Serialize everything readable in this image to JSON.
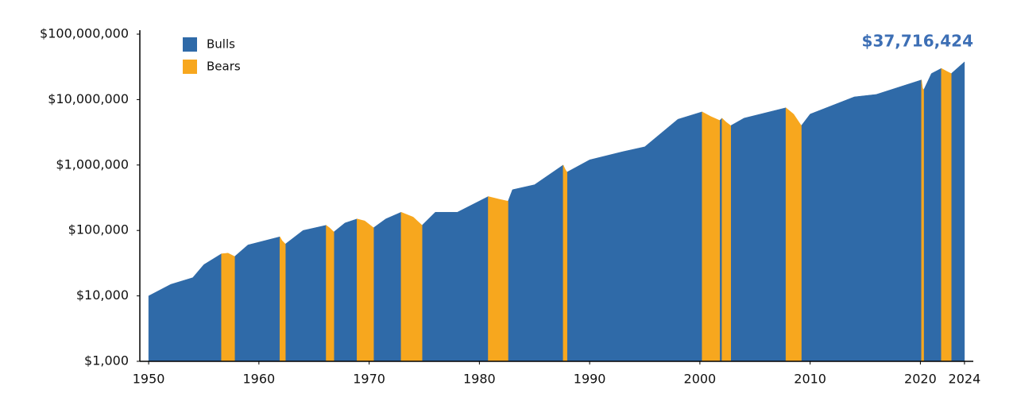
{
  "chart_data": {
    "type": "area",
    "log_scale": true,
    "legend": "upper left",
    "annotation": "$37,716,424",
    "x": [
      1950,
      1952,
      1954,
      1955,
      1956.6,
      1957.2,
      1957.8,
      1959,
      1961.9,
      1962.1,
      1962.4,
      1964,
      1966.1,
      1966.4,
      1966.8,
      1967.8,
      1968.9,
      1969.6,
      1970.4,
      1971.5,
      1972.9,
      1974,
      1974.8,
      1976,
      1978,
      1980.8,
      1981.8,
      1982.6,
      1983,
      1985,
      1987.6,
      1987.8,
      1987.95,
      1990,
      1993,
      1995,
      1998,
      2000.2,
      2001,
      2001.8,
      2001.9,
      2002,
      2002.4,
      2002.8,
      2004,
      2007.8,
      2008.5,
      2009.2,
      2010,
      2014,
      2016,
      2020.1,
      2020.2,
      2020.3,
      2021,
      2021.9,
      2022.4,
      2022.8,
      2024
    ],
    "series": [
      {
        "name": "Bulls",
        "color": "#2f6aa8",
        "values": [
          10000,
          15000,
          19000,
          30000,
          44000,
          null,
          40000,
          60000,
          80000,
          null,
          62000,
          100000,
          120000,
          null,
          95000,
          130000,
          150000,
          null,
          110000,
          150000,
          190000,
          null,
          120000,
          190000,
          190000,
          330000,
          null,
          280000,
          420000,
          500000,
          1000000,
          null,
          780000,
          1200000,
          1600000,
          1900000,
          5000000,
          6500000,
          null,
          4800000,
          5000000,
          5200000,
          null,
          4000000,
          5200000,
          7500000,
          null,
          4000000,
          6000000,
          11000000,
          12000000,
          20000000,
          null,
          14000000,
          25000000,
          30000000,
          null,
          25000000,
          37716424
        ]
      },
      {
        "name": "Bears",
        "color": "#f7a71e",
        "values": [
          null,
          null,
          null,
          null,
          44000,
          45000,
          40000,
          null,
          80000,
          70000,
          62000,
          null,
          120000,
          110000,
          95000,
          null,
          150000,
          140000,
          110000,
          null,
          190000,
          160000,
          120000,
          null,
          null,
          330000,
          300000,
          280000,
          null,
          null,
          1000000,
          850000,
          780000,
          null,
          null,
          null,
          null,
          6500000,
          5500000,
          4800000,
          null,
          5200000,
          4500000,
          4000000,
          null,
          7500000,
          6000000,
          4000000,
          null,
          null,
          null,
          20000000,
          15000000,
          14000000,
          null,
          30000000,
          27000000,
          25000000,
          null
        ]
      }
    ],
    "xlim": [
      1949.2,
      2024.8
    ],
    "xticks": [
      1950,
      1960,
      1970,
      1980,
      1990,
      2000,
      2010,
      2020,
      2024
    ],
    "ylim": [
      1000,
      100000000
    ],
    "yticks": [
      {
        "value": 1000,
        "label": "$1,000"
      },
      {
        "value": 10000,
        "label": "$10,000"
      },
      {
        "value": 100000,
        "label": "$100,000"
      },
      {
        "value": 1000000,
        "label": "$1,000,000"
      },
      {
        "value": 10000000,
        "label": "$10,000,000"
      },
      {
        "value": 100000000,
        "label": "$100,000,000"
      }
    ]
  }
}
